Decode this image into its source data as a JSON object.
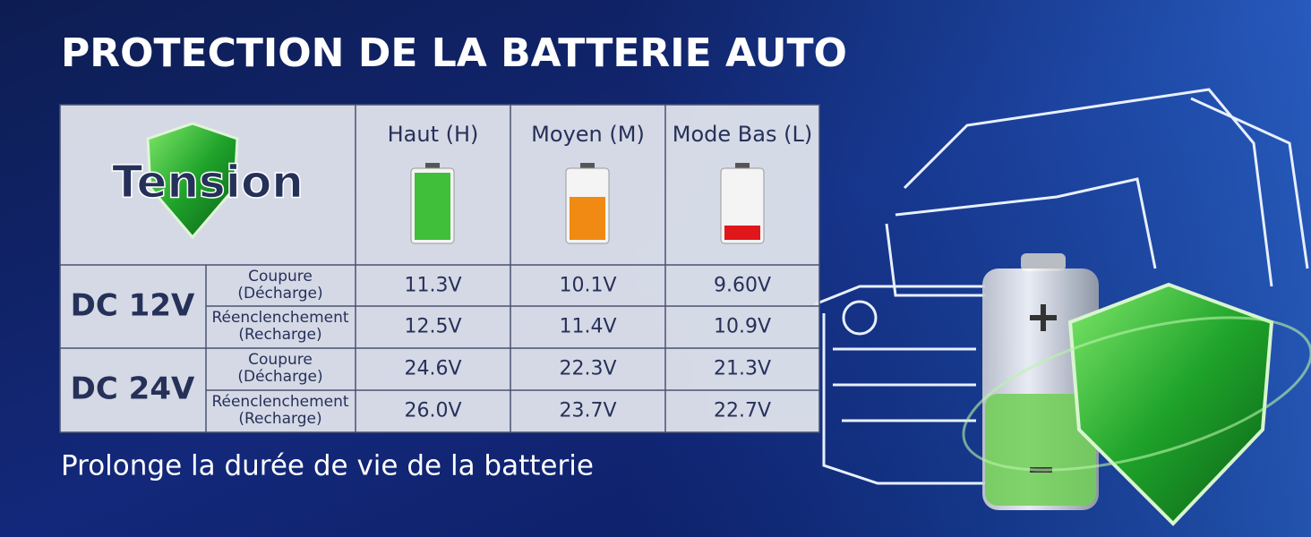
{
  "header": {
    "title": "PROTECTION DE LA BATTERIE AUTO"
  },
  "table": {
    "corner_label": "Tension",
    "columns": [
      "Haut (H)",
      "Moyen (M)",
      "Mode Bas (L)"
    ],
    "groups": [
      {
        "label": "DC 12V",
        "rows": [
          {
            "label": [
              "Coupure",
              "(Décharge)"
            ],
            "values": [
              "11.3V",
              "10.1V",
              "9.60V"
            ]
          },
          {
            "label": [
              "Réenclenchement",
              "(Recharge)"
            ],
            "values": [
              "12.5V",
              "11.4V",
              "10.9V"
            ]
          }
        ]
      },
      {
        "label": "DC 24V",
        "rows": [
          {
            "label": [
              "Coupure",
              "(Décharge)"
            ],
            "values": [
              "24.6V",
              "22.3V",
              "21.3V"
            ]
          },
          {
            "label": [
              "Réenclenchement",
              "(Recharge)"
            ],
            "values": [
              "26.0V",
              "23.7V",
              "22.7V"
            ]
          }
        ]
      }
    ]
  },
  "footer": {
    "text": "Prolonge la durée de vie de la batterie"
  }
}
